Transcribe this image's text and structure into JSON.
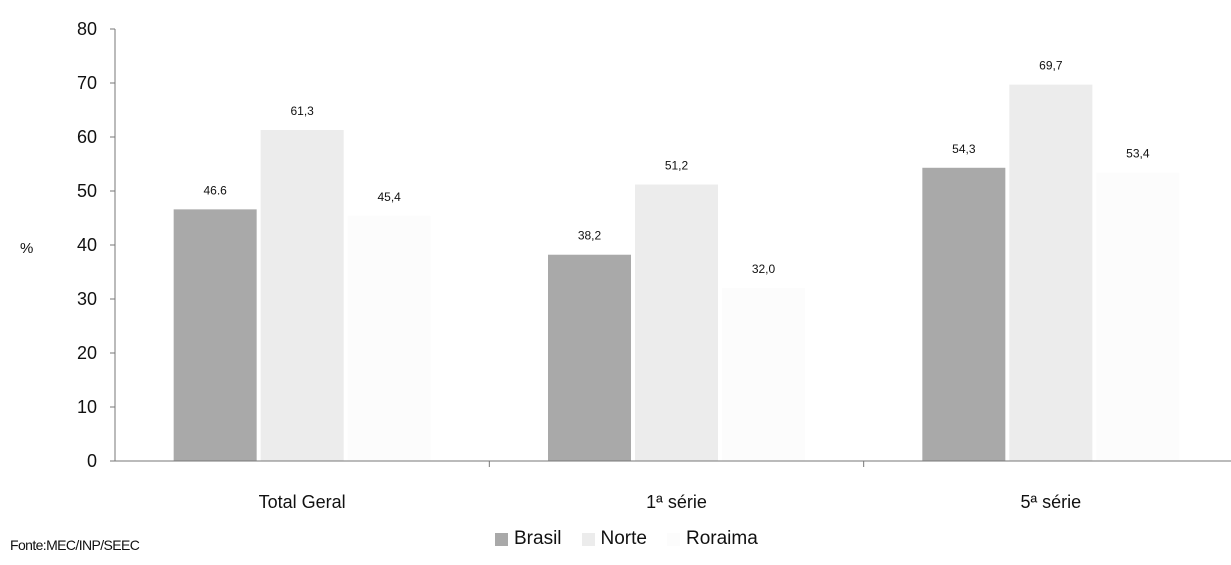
{
  "chart_data": {
    "type": "bar",
    "categories": [
      "Total Geral",
      "1ª série",
      "5ª série"
    ],
    "series": [
      {
        "name": "Brasil",
        "values": [
          46.6,
          38.2,
          54.3
        ],
        "labels": [
          "46.6",
          "38,2",
          "54,3"
        ]
      },
      {
        "name": "Norte",
        "values": [
          61.3,
          51.2,
          69.7
        ],
        "labels": [
          "61,3",
          "51,2",
          "69,7"
        ]
      },
      {
        "name": "Roraima",
        "values": [
          45.4,
          32.0,
          53.4
        ],
        "labels": [
          "45,4",
          "32,0",
          "53,4"
        ]
      }
    ],
    "ylabel": "%",
    "ylim": [
      0,
      80
    ],
    "yticks": [
      "0",
      "10",
      "20",
      "30",
      "40",
      "50",
      "60",
      "70",
      "80"
    ],
    "legend_position": "bottom",
    "grid": false,
    "colors": {
      "Brasil": "#a9a9a9",
      "Norte": "#ececec",
      "Roraima": "#fcfcfc"
    }
  },
  "source": "Fonte:MEC/INP/SEEC"
}
